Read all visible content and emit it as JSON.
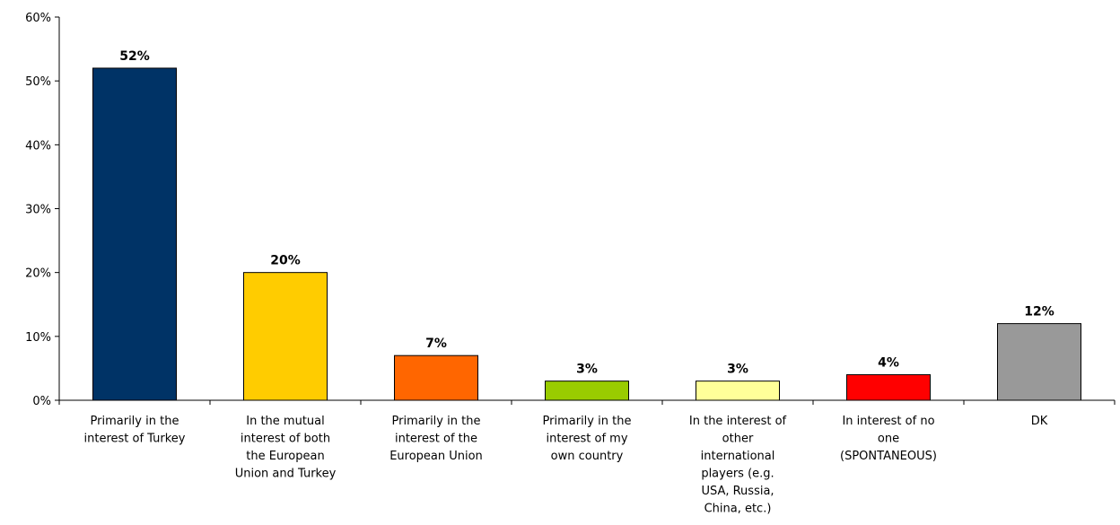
{
  "chart_data": {
    "type": "bar",
    "title": "",
    "xlabel": "",
    "ylabel": "",
    "ylim": [
      0,
      60
    ],
    "yticks": [
      "0%",
      "10%",
      "20%",
      "30%",
      "40%",
      "50%",
      "60%"
    ],
    "categories": [
      [
        "Primarily in the",
        "interest of Turkey"
      ],
      [
        "In the mutual",
        "interest of both",
        "the European",
        "Union and Turkey"
      ],
      [
        "Primarily in the",
        "interest of the",
        "European Union"
      ],
      [
        "Primarily in the",
        "interest of my",
        "own country"
      ],
      [
        "In the interest of",
        "other",
        "international",
        "players (e.g.",
        "USA, Russia,",
        "China, etc.)"
      ],
      [
        "In interest of no",
        "one",
        "(SPONTANEOUS)"
      ],
      [
        "DK"
      ]
    ],
    "values": [
      52,
      20,
      7,
      3,
      3,
      4,
      12
    ],
    "data_labels": [
      "52%",
      "20%",
      "7%",
      "3%",
      "3%",
      "4%",
      "12%"
    ],
    "colors": [
      "#003366",
      "#ffcc00",
      "#ff6600",
      "#99cc00",
      "#ffff99",
      "#ff0000",
      "#999999"
    ],
    "grid": false,
    "legend": "none"
  }
}
